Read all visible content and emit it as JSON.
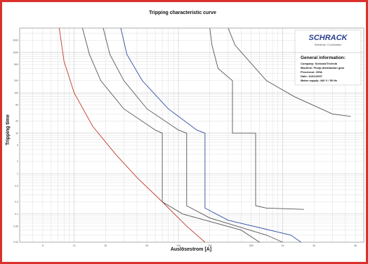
{
  "chart_data": {
    "type": "line",
    "title": "Tripping characteristic curve",
    "xlabel": "Auslösestrom [A]",
    "ylabel": "Tripping time",
    "x_scale": "log",
    "y_scale": "log",
    "grid": true,
    "series": [
      {
        "color": "#c0392b",
        "points": [
          [
            7.2,
            4000
          ],
          [
            8,
            600
          ],
          [
            10,
            100
          ],
          [
            15,
            15
          ],
          [
            25,
            3
          ],
          [
            40,
            0.8
          ],
          [
            70,
            0.2
          ],
          [
            120,
            0.05
          ],
          [
            180,
            0.02
          ]
        ]
      },
      {
        "color": "#555555",
        "points": [
          [
            12,
            4000
          ],
          [
            14,
            900
          ],
          [
            18,
            200
          ],
          [
            30,
            40
          ],
          [
            60,
            12
          ],
          [
            70,
            10
          ],
          [
            70,
            0.2
          ],
          [
            110,
            0.1
          ],
          [
            400,
            0.04
          ],
          [
            600,
            0.02
          ]
        ]
      },
      {
        "color": "#555555",
        "points": [
          [
            19,
            4000
          ],
          [
            22,
            900
          ],
          [
            30,
            200
          ],
          [
            50,
            40
          ],
          [
            100,
            12
          ],
          [
            120,
            10
          ],
          [
            120,
            0.16
          ],
          [
            200,
            0.08
          ],
          [
            700,
            0.03
          ],
          [
            1000,
            0.02
          ]
        ]
      },
      {
        "color": "#2e4da3",
        "points": [
          [
            28,
            4000
          ],
          [
            32,
            900
          ],
          [
            45,
            200
          ],
          [
            80,
            40
          ],
          [
            150,
            12
          ],
          [
            180,
            10
          ],
          [
            180,
            0.14
          ],
          [
            300,
            0.07
          ],
          [
            1200,
            0.03
          ],
          [
            1500,
            0.02
          ]
        ]
      },
      {
        "color": "#555555",
        "points": [
          [
            200,
            4000
          ],
          [
            210,
            1500
          ],
          [
            240,
            400
          ],
          [
            330,
            200
          ],
          [
            330,
            10
          ],
          [
            550,
            10
          ],
          [
            550,
            0.16
          ],
          [
            700,
            0.14
          ],
          [
            1600,
            0.13
          ]
        ]
      },
      {
        "color": "#555555",
        "points": [
          [
            300,
            4000
          ],
          [
            350,
            1500
          ],
          [
            700,
            200
          ],
          [
            1300,
            80
          ],
          [
            3000,
            30
          ],
          [
            4500,
            26
          ]
        ]
      }
    ],
    "xlim": [
      3,
      6000
    ],
    "ylim": [
      0.02,
      4000
    ]
  },
  "info": {
    "heading": "General information:",
    "lines": [
      "Company: Schrack/Technik",
      "Machine: Pump distribution gear",
      "Processor: GHA",
      "Date: 13/11/2007",
      "Mains supply: 440 V / 50 Hz"
    ]
  },
  "logo": {
    "brand": "SCHRACK",
    "subtitle": "Selectivity / Coordination"
  },
  "colors": {
    "border": "#d9302b",
    "brand": "#2b3f8f",
    "grid": "#c8c8c8"
  }
}
